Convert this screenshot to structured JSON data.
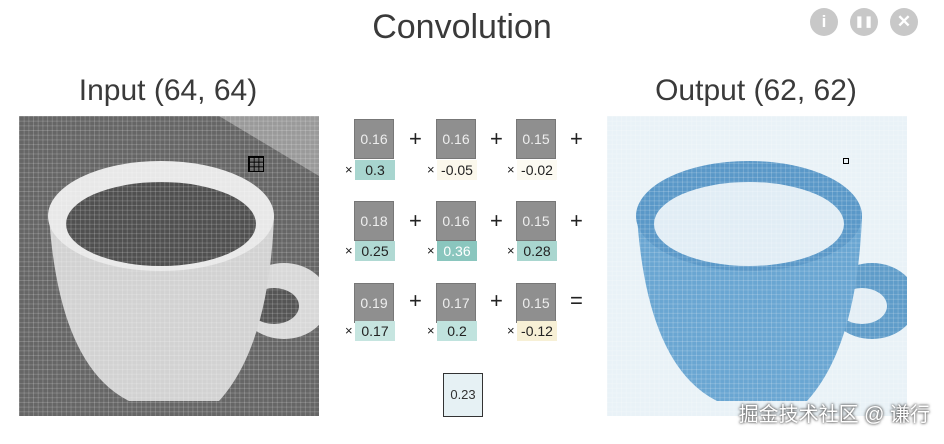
{
  "title": "Convolution",
  "controls": [
    {
      "icon": "info-icon",
      "glyph": "i"
    },
    {
      "icon": "pause-icon",
      "glyph": "❚❚"
    },
    {
      "icon": "close-icon",
      "glyph": "✕"
    }
  ],
  "input": {
    "label": "Input (64, 64)"
  },
  "output": {
    "label": "Output (62, 62)"
  },
  "kernel": {
    "pixels": [
      [
        "0.16",
        "0.16",
        "0.15"
      ],
      [
        "0.18",
        "0.16",
        "0.15"
      ],
      [
        "0.19",
        "0.17",
        "0.15"
      ]
    ],
    "weights": [
      [
        "0.3",
        "-0.05",
        "-0.02"
      ],
      [
        "0.25",
        "0.36",
        "0.28"
      ],
      [
        "0.17",
        "0.2",
        "-0.12"
      ]
    ],
    "weight_colors": [
      [
        "#a8d5cf",
        "#fbf8ec",
        "#fcfaf2"
      ],
      [
        "#b0d9d3",
        "#8ac6be",
        "#a9d6cf"
      ],
      [
        "#c6e5e0",
        "#c0e3de",
        "#f7f0d6"
      ]
    ],
    "times": "×",
    "plus": "+",
    "equals": "="
  },
  "result": "0.23",
  "watermark": "掘金技术社区 @ 谦行"
}
